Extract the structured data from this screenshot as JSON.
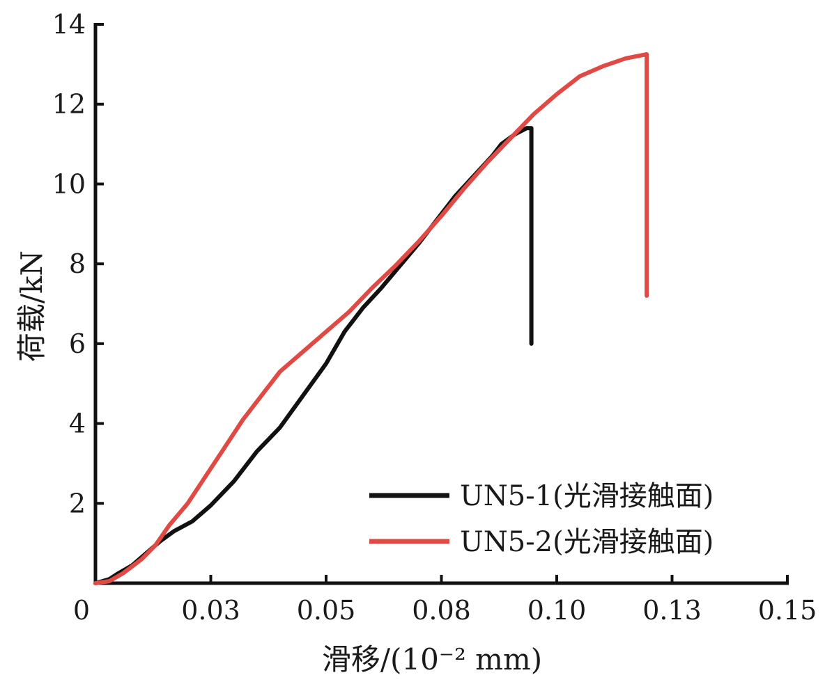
{
  "chart_data": {
    "type": "line",
    "xlabel": "滑移/(10⁻² mm)",
    "ylabel": "荷载/kN",
    "xlim": [
      0,
      0.15
    ],
    "ylim": [
      0,
      14
    ],
    "x_tick_labels": [
      "0",
      "0.03",
      "0.05",
      "0.08",
      "0.10",
      "0.13",
      "0.15"
    ],
    "y_tick_labels": [
      "2",
      "4",
      "6",
      "8",
      "10",
      "12",
      "14"
    ],
    "legend_position": "bottom-right",
    "grid": false,
    "series": [
      {
        "name": "UN5-1(光滑接触面)",
        "color": "#111111",
        "points": [
          [
            0.0,
            0.0
          ],
          [
            0.003,
            0.1
          ],
          [
            0.005,
            0.25
          ],
          [
            0.008,
            0.45
          ],
          [
            0.011,
            0.75
          ],
          [
            0.014,
            1.05
          ],
          [
            0.017,
            1.3
          ],
          [
            0.021,
            1.55
          ],
          [
            0.025,
            1.95
          ],
          [
            0.03,
            2.55
          ],
          [
            0.035,
            3.3
          ],
          [
            0.04,
            3.9
          ],
          [
            0.045,
            4.7
          ],
          [
            0.05,
            5.5
          ],
          [
            0.054,
            6.3
          ],
          [
            0.058,
            6.9
          ],
          [
            0.062,
            7.4
          ],
          [
            0.066,
            7.95
          ],
          [
            0.07,
            8.5
          ],
          [
            0.074,
            9.1
          ],
          [
            0.078,
            9.7
          ],
          [
            0.082,
            10.2
          ],
          [
            0.086,
            10.7
          ],
          [
            0.088,
            11.0
          ],
          [
            0.091,
            11.25
          ],
          [
            0.0935,
            11.4
          ],
          [
            0.0945,
            11.4
          ],
          [
            0.0945,
            6.0
          ]
        ]
      },
      {
        "name": "UN5-2(光滑接触面)",
        "color": "#e04a45",
        "points": [
          [
            0.0,
            0.0
          ],
          [
            0.003,
            0.05
          ],
          [
            0.006,
            0.25
          ],
          [
            0.01,
            0.6
          ],
          [
            0.013,
            0.95
          ],
          [
            0.016,
            1.45
          ],
          [
            0.02,
            2.0
          ],
          [
            0.024,
            2.7
          ],
          [
            0.028,
            3.4
          ],
          [
            0.032,
            4.1
          ],
          [
            0.036,
            4.7
          ],
          [
            0.04,
            5.3
          ],
          [
            0.045,
            5.8
          ],
          [
            0.05,
            6.3
          ],
          [
            0.055,
            6.8
          ],
          [
            0.06,
            7.4
          ],
          [
            0.065,
            7.95
          ],
          [
            0.07,
            8.55
          ],
          [
            0.075,
            9.2
          ],
          [
            0.08,
            9.9
          ],
          [
            0.085,
            10.55
          ],
          [
            0.09,
            11.15
          ],
          [
            0.095,
            11.75
          ],
          [
            0.1,
            12.25
          ],
          [
            0.105,
            12.7
          ],
          [
            0.11,
            12.95
          ],
          [
            0.115,
            13.15
          ],
          [
            0.1195,
            13.25
          ],
          [
            0.1195,
            7.2
          ]
        ]
      }
    ]
  }
}
